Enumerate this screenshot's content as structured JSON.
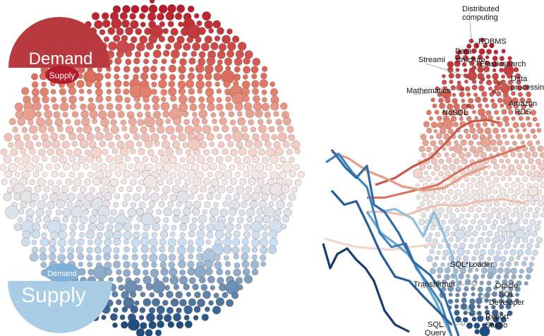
{
  "legend": {
    "demand_badge": {
      "big": "Demand",
      "small": "Supply",
      "color": "#b8393e"
    },
    "supply_badge": {
      "big": "Supply",
      "small": "Demand",
      "color": "#a8cde4"
    }
  },
  "colors": {
    "demand_dark": "#b41d2c",
    "demand_mid": "#e07b66",
    "neutral": "#f7e8e2",
    "supply_light": "#c8def0",
    "supply_dark": "#1f4e80"
  },
  "chart_data": {
    "type": "scatter",
    "title": "",
    "xlabel": "",
    "ylabel": "",
    "description_scale": "Bubbles ordered from demand (top, red) to supply (bottom, blue)",
    "labels_top": [
      "Distributed computing",
      "RDBMS",
      "Data structure",
      "Streaming",
      "Elasticsearch",
      "Data processing",
      "Mathematics",
      "Amazon RDS",
      "NoSQL"
    ],
    "labels_bottom": [
      "SQL*Loader",
      "Transformer",
      "Oracle SQL Developer",
      "Report Studio",
      "SQL Query"
    ],
    "label_text": {
      "distributed": [
        "Distributed",
        "computing"
      ],
      "rdbms": [
        "RDBMS"
      ],
      "data_structure": [
        "Data",
        "structure"
      ],
      "streaming": [
        "Streami"
      ],
      "elasticsearch": [
        "Elasticsearch"
      ],
      "data_processing": [
        "Data",
        "processing"
      ],
      "mathematics": [
        "Mathematics"
      ],
      "amazon_rds": [
        "Amazon",
        "RDS"
      ],
      "nosql": [
        "NoSQL"
      ],
      "sqlloader": [
        "SQL*Loader"
      ],
      "transformer": [
        "Transformer"
      ],
      "oracle": [
        "Oracle",
        "SQL",
        "Developer"
      ],
      "report_studio": [
        "Report",
        "Studio"
      ],
      "sql_query": [
        "SQL",
        "Query"
      ]
    }
  }
}
